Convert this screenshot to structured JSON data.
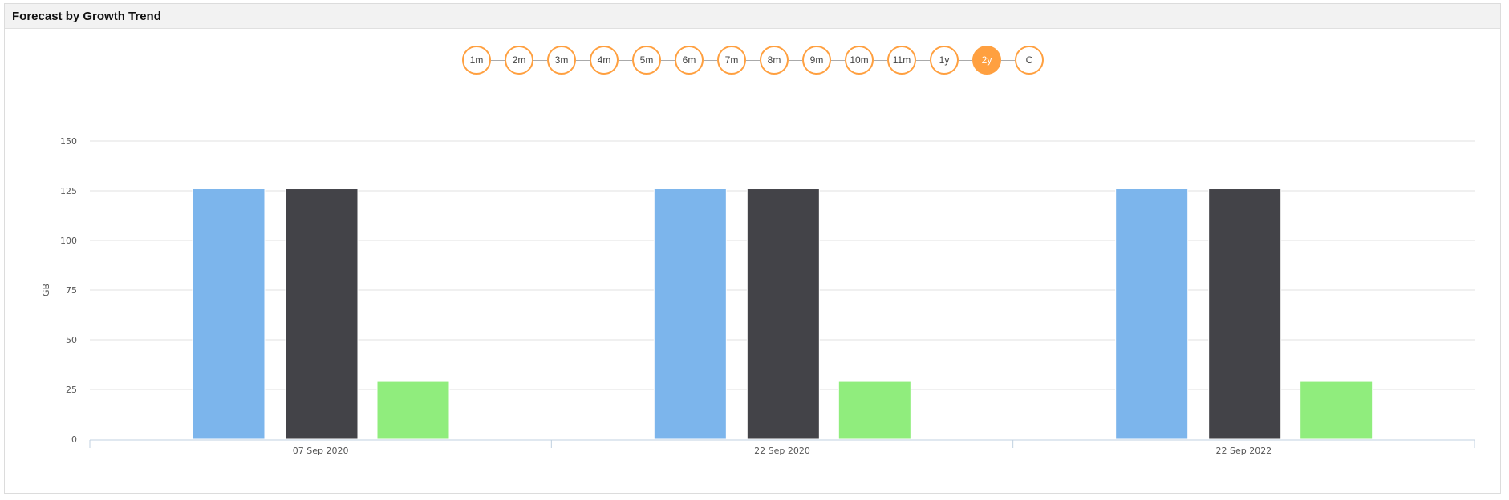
{
  "panel": {
    "title": "Forecast by Growth Trend"
  },
  "range_selector": {
    "options": [
      "1m",
      "2m",
      "3m",
      "4m",
      "5m",
      "6m",
      "7m",
      "8m",
      "9m",
      "10m",
      "11m",
      "1y",
      "2y",
      "C"
    ],
    "selected": "2y",
    "accent_color": "#ffa040"
  },
  "chart_data": {
    "type": "bar",
    "title": "",
    "xlabel": "",
    "ylabel": "GB",
    "ylim": [
      0,
      150
    ],
    "yticks": [
      0,
      25,
      50,
      75,
      100,
      125,
      150
    ],
    "grid": true,
    "categories": [
      "07 Sep 2020",
      "22 Sep 2020",
      "22 Sep 2022"
    ],
    "series": [
      {
        "color": "#7cb5ec",
        "values": [
          126,
          126,
          126
        ]
      },
      {
        "color": "#434348",
        "values": [
          126,
          126,
          126
        ]
      },
      {
        "color": "#90ed7d",
        "values": [
          29,
          29,
          29
        ]
      }
    ]
  }
}
